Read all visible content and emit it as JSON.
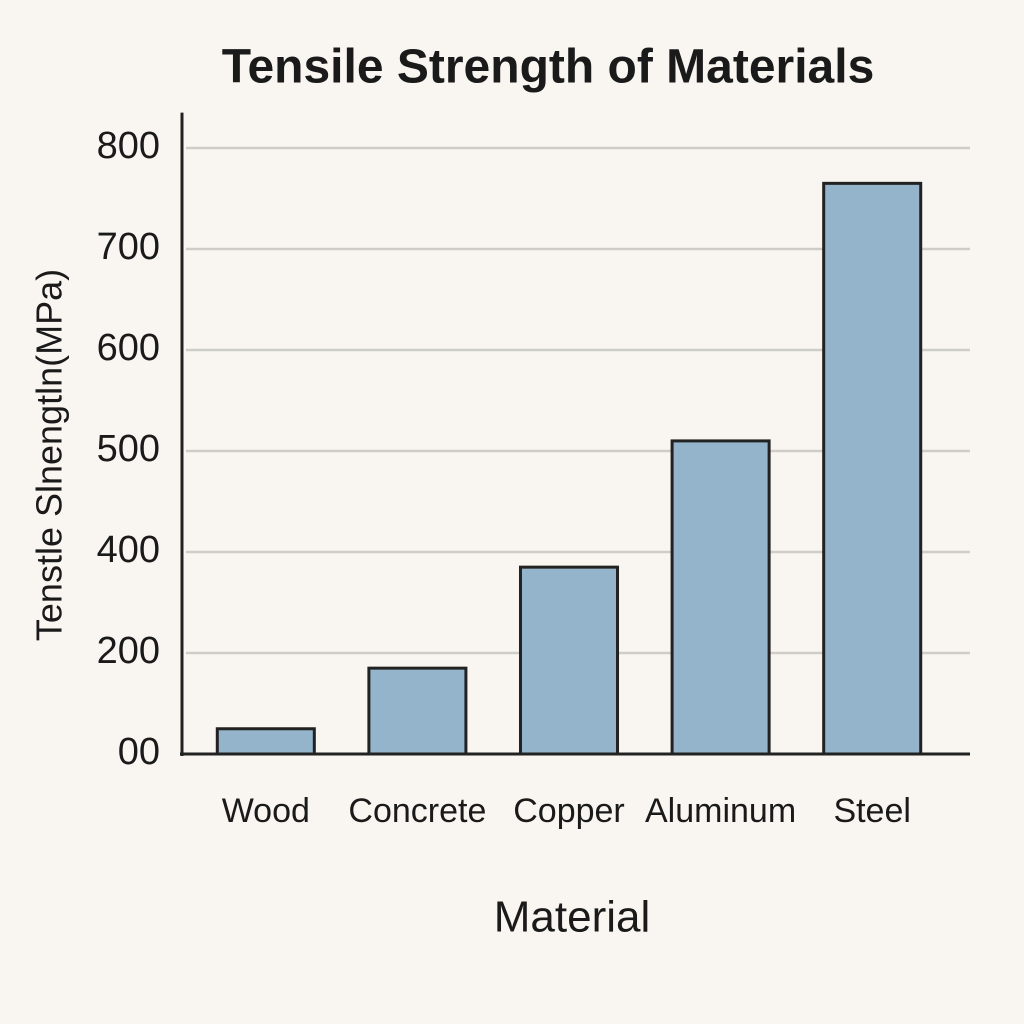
{
  "chart_data": {
    "type": "bar",
    "title": "Tensile Strength of Materials",
    "x_label": "Material",
    "y_label": "Tenstle Slnengtln(MPa)",
    "categories": [
      "Wood",
      "Concrete",
      "Copper",
      "Aluminum",
      "Steel"
    ],
    "values": [
      50,
      170,
      370,
      510,
      765
    ],
    "color": "#93b4cb",
    "ylim": [
      0,
      835
    ],
    "yticks": [
      {
        "value": 0,
        "label": "00"
      },
      200,
      400,
      500,
      600,
      700,
      800
    ],
    "grid": true
  }
}
